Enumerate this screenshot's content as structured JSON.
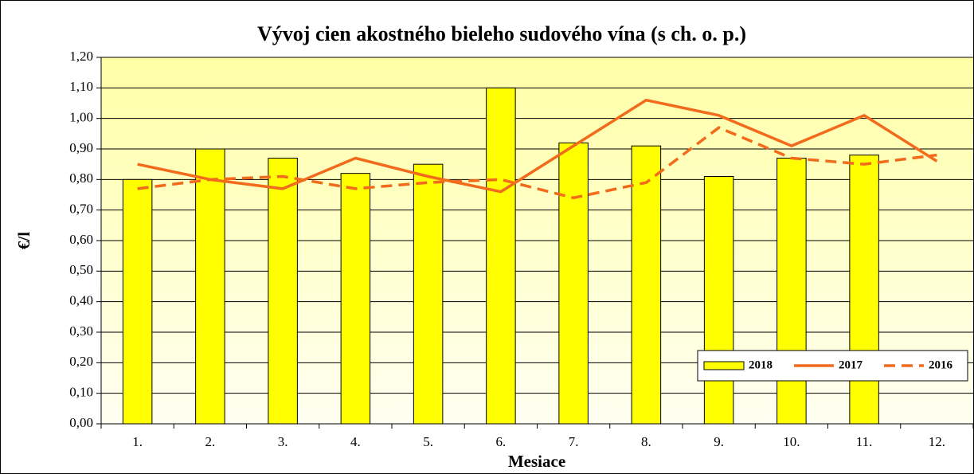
{
  "chart_data": {
    "type": "bar",
    "title": "Vývoj cien akostného bieleho sudového vína (s ch. o. p.)",
    "x_label": "Mesiace",
    "y_label": "€/l",
    "categories": [
      "1.",
      "2.",
      "3.",
      "4.",
      "5.",
      "6.",
      "7.",
      "8.",
      "9.",
      "10.",
      "11.",
      "12."
    ],
    "series": [
      {
        "name": "2018",
        "type": "bar",
        "color": "#ffff00",
        "values": [
          0.8,
          0.9,
          0.87,
          0.82,
          0.85,
          1.1,
          0.92,
          0.91,
          0.81,
          0.87,
          0.88,
          null
        ]
      },
      {
        "name": "2017",
        "type": "line",
        "line_style": "solid",
        "color": "#f26a1b",
        "values": [
          0.85,
          0.8,
          0.77,
          0.87,
          0.81,
          0.76,
          0.91,
          1.06,
          1.01,
          0.91,
          1.01,
          0.86
        ]
      },
      {
        "name": "2016",
        "type": "line",
        "line_style": "dashed",
        "color": "#f26a1b",
        "values": [
          0.77,
          0.8,
          0.81,
          0.77,
          0.79,
          0.8,
          0.74,
          0.79,
          0.97,
          0.87,
          0.85,
          0.88
        ]
      }
    ],
    "ylim": [
      0,
      1.2
    ],
    "yticks": [
      {
        "value": 0,
        "label": "0,00"
      },
      {
        "value": 0.1,
        "label": "0,10"
      },
      {
        "value": 0.2,
        "label": "0,20"
      },
      {
        "value": 0.3,
        "label": "0,30"
      },
      {
        "value": 0.4,
        "label": "0,40"
      },
      {
        "value": 0.5,
        "label": "0,50"
      },
      {
        "value": 0.6,
        "label": "0,60"
      },
      {
        "value": 0.7,
        "label": "0,70"
      },
      {
        "value": 0.8,
        "label": "0,80"
      },
      {
        "value": 0.9,
        "label": "0,90"
      },
      {
        "value": 1.0,
        "label": "1,00"
      },
      {
        "value": 1.1,
        "label": "1,10"
      },
      {
        "value": 1.2,
        "label": "1,20"
      }
    ],
    "grid": true,
    "legend_position": "lower right"
  }
}
